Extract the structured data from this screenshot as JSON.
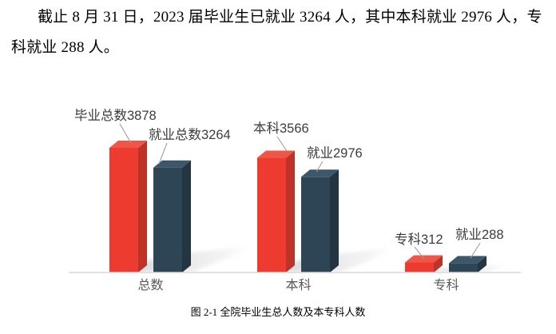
{
  "document": {
    "paragraph": "截止 8 月 31 日，2023 届毕业生已就业 3264 人，其中本科就业 2976 人，专科就业 288 人。",
    "figure_caption": "图 2-1  全院毕业生总人数及本专科人数"
  },
  "chart_data": {
    "type": "bar",
    "style": "3d-clustered-column",
    "categories": [
      "总数",
      "本科",
      "专科"
    ],
    "series": [
      {
        "name": "毕业",
        "values": [
          3878,
          3566,
          312
        ],
        "data_labels": [
          "毕业总数3878",
          "本科3566",
          "专科312"
        ],
        "front_color": "#ed3b30",
        "side_color": "#bf3228",
        "top_color": "#ef564a"
      },
      {
        "name": "就业",
        "values": [
          3264,
          2976,
          288
        ],
        "data_labels": [
          "就业总数3264",
          "就业2976",
          "就业288"
        ],
        "front_color": "#2e4555",
        "side_color": "#233443",
        "top_color": "#3d5669"
      }
    ],
    "ylim": [
      0,
      3878
    ],
    "grid": false,
    "legend_position": "none",
    "axis_line_color": "#d9d9d9",
    "data_label_color": "#3d3d3d",
    "category_label_color": "#595959",
    "callout_line_color": "#9e9e9e"
  }
}
